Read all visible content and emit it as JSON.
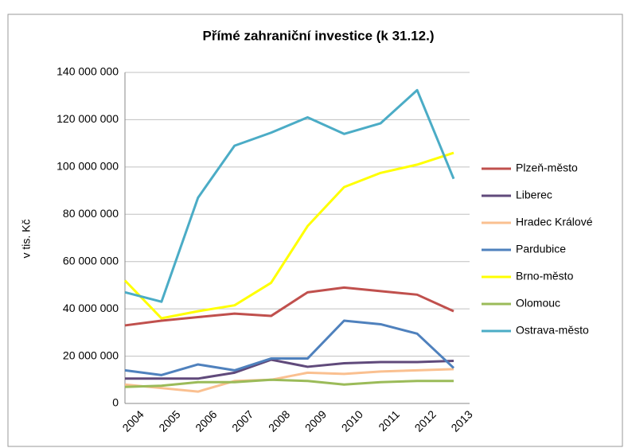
{
  "chart_data": {
    "type": "line",
    "title": "Přímé zahraniční investice (k 31.12.)",
    "y_label": "v tis. Kč",
    "categories": [
      "2004",
      "2005",
      "2006",
      "2007",
      "2008",
      "2009",
      "2010",
      "2011",
      "2012",
      "2013"
    ],
    "series": [
      {
        "name": "Plzeň-město",
        "color": "#c0504d",
        "values": [
          33000000,
          35000000,
          36500000,
          38000000,
          37000000,
          47000000,
          49000000,
          47500000,
          46000000,
          39000000
        ]
      },
      {
        "name": "Liberec",
        "color": "#604a7b",
        "values": [
          10500000,
          10500000,
          10500000,
          13000000,
          18500000,
          15500000,
          17000000,
          17500000,
          17500000,
          18000000
        ]
      },
      {
        "name": "Hradec Králové",
        "color": "#fac090",
        "values": [
          8000000,
          6500000,
          5000000,
          9500000,
          10000000,
          13000000,
          12500000,
          13500000,
          14000000,
          14500000
        ]
      },
      {
        "name": "Pardubice",
        "color": "#4f81bd",
        "values": [
          14000000,
          12000000,
          16500000,
          14000000,
          19000000,
          19000000,
          35000000,
          33500000,
          29500000,
          15000000
        ]
      },
      {
        "name": "Brno-město",
        "color": "#ffff00",
        "values": [
          52000000,
          36000000,
          39000000,
          41500000,
          51000000,
          75000000,
          91500000,
          97500000,
          101000000,
          106000000
        ]
      },
      {
        "name": "Olomouc",
        "color": "#9bbb59",
        "values": [
          7000000,
          7500000,
          9000000,
          9000000,
          10000000,
          9500000,
          8000000,
          9000000,
          9500000,
          9500000
        ]
      },
      {
        "name": "Ostrava-město",
        "color": "#4bacc6",
        "values": [
          47000000,
          43000000,
          87000000,
          109000000,
          114500000,
          121000000,
          114000000,
          118500000,
          132500000,
          95000000
        ]
      }
    ],
    "ylim": [
      0,
      140000000
    ],
    "yticks": [
      {
        "value": 0,
        "label": "0"
      },
      {
        "value": 20000000,
        "label": "20 000 000"
      },
      {
        "value": 40000000,
        "label": "40 000 000"
      },
      {
        "value": 60000000,
        "label": "60 000 000"
      },
      {
        "value": 80000000,
        "label": "80 000 000"
      },
      {
        "value": 100000000,
        "label": "100 000 000"
      },
      {
        "value": 120000000,
        "label": "120 000 000"
      },
      {
        "value": 140000000,
        "label": "140 000 000"
      }
    ],
    "grid": true,
    "legend": "right"
  }
}
